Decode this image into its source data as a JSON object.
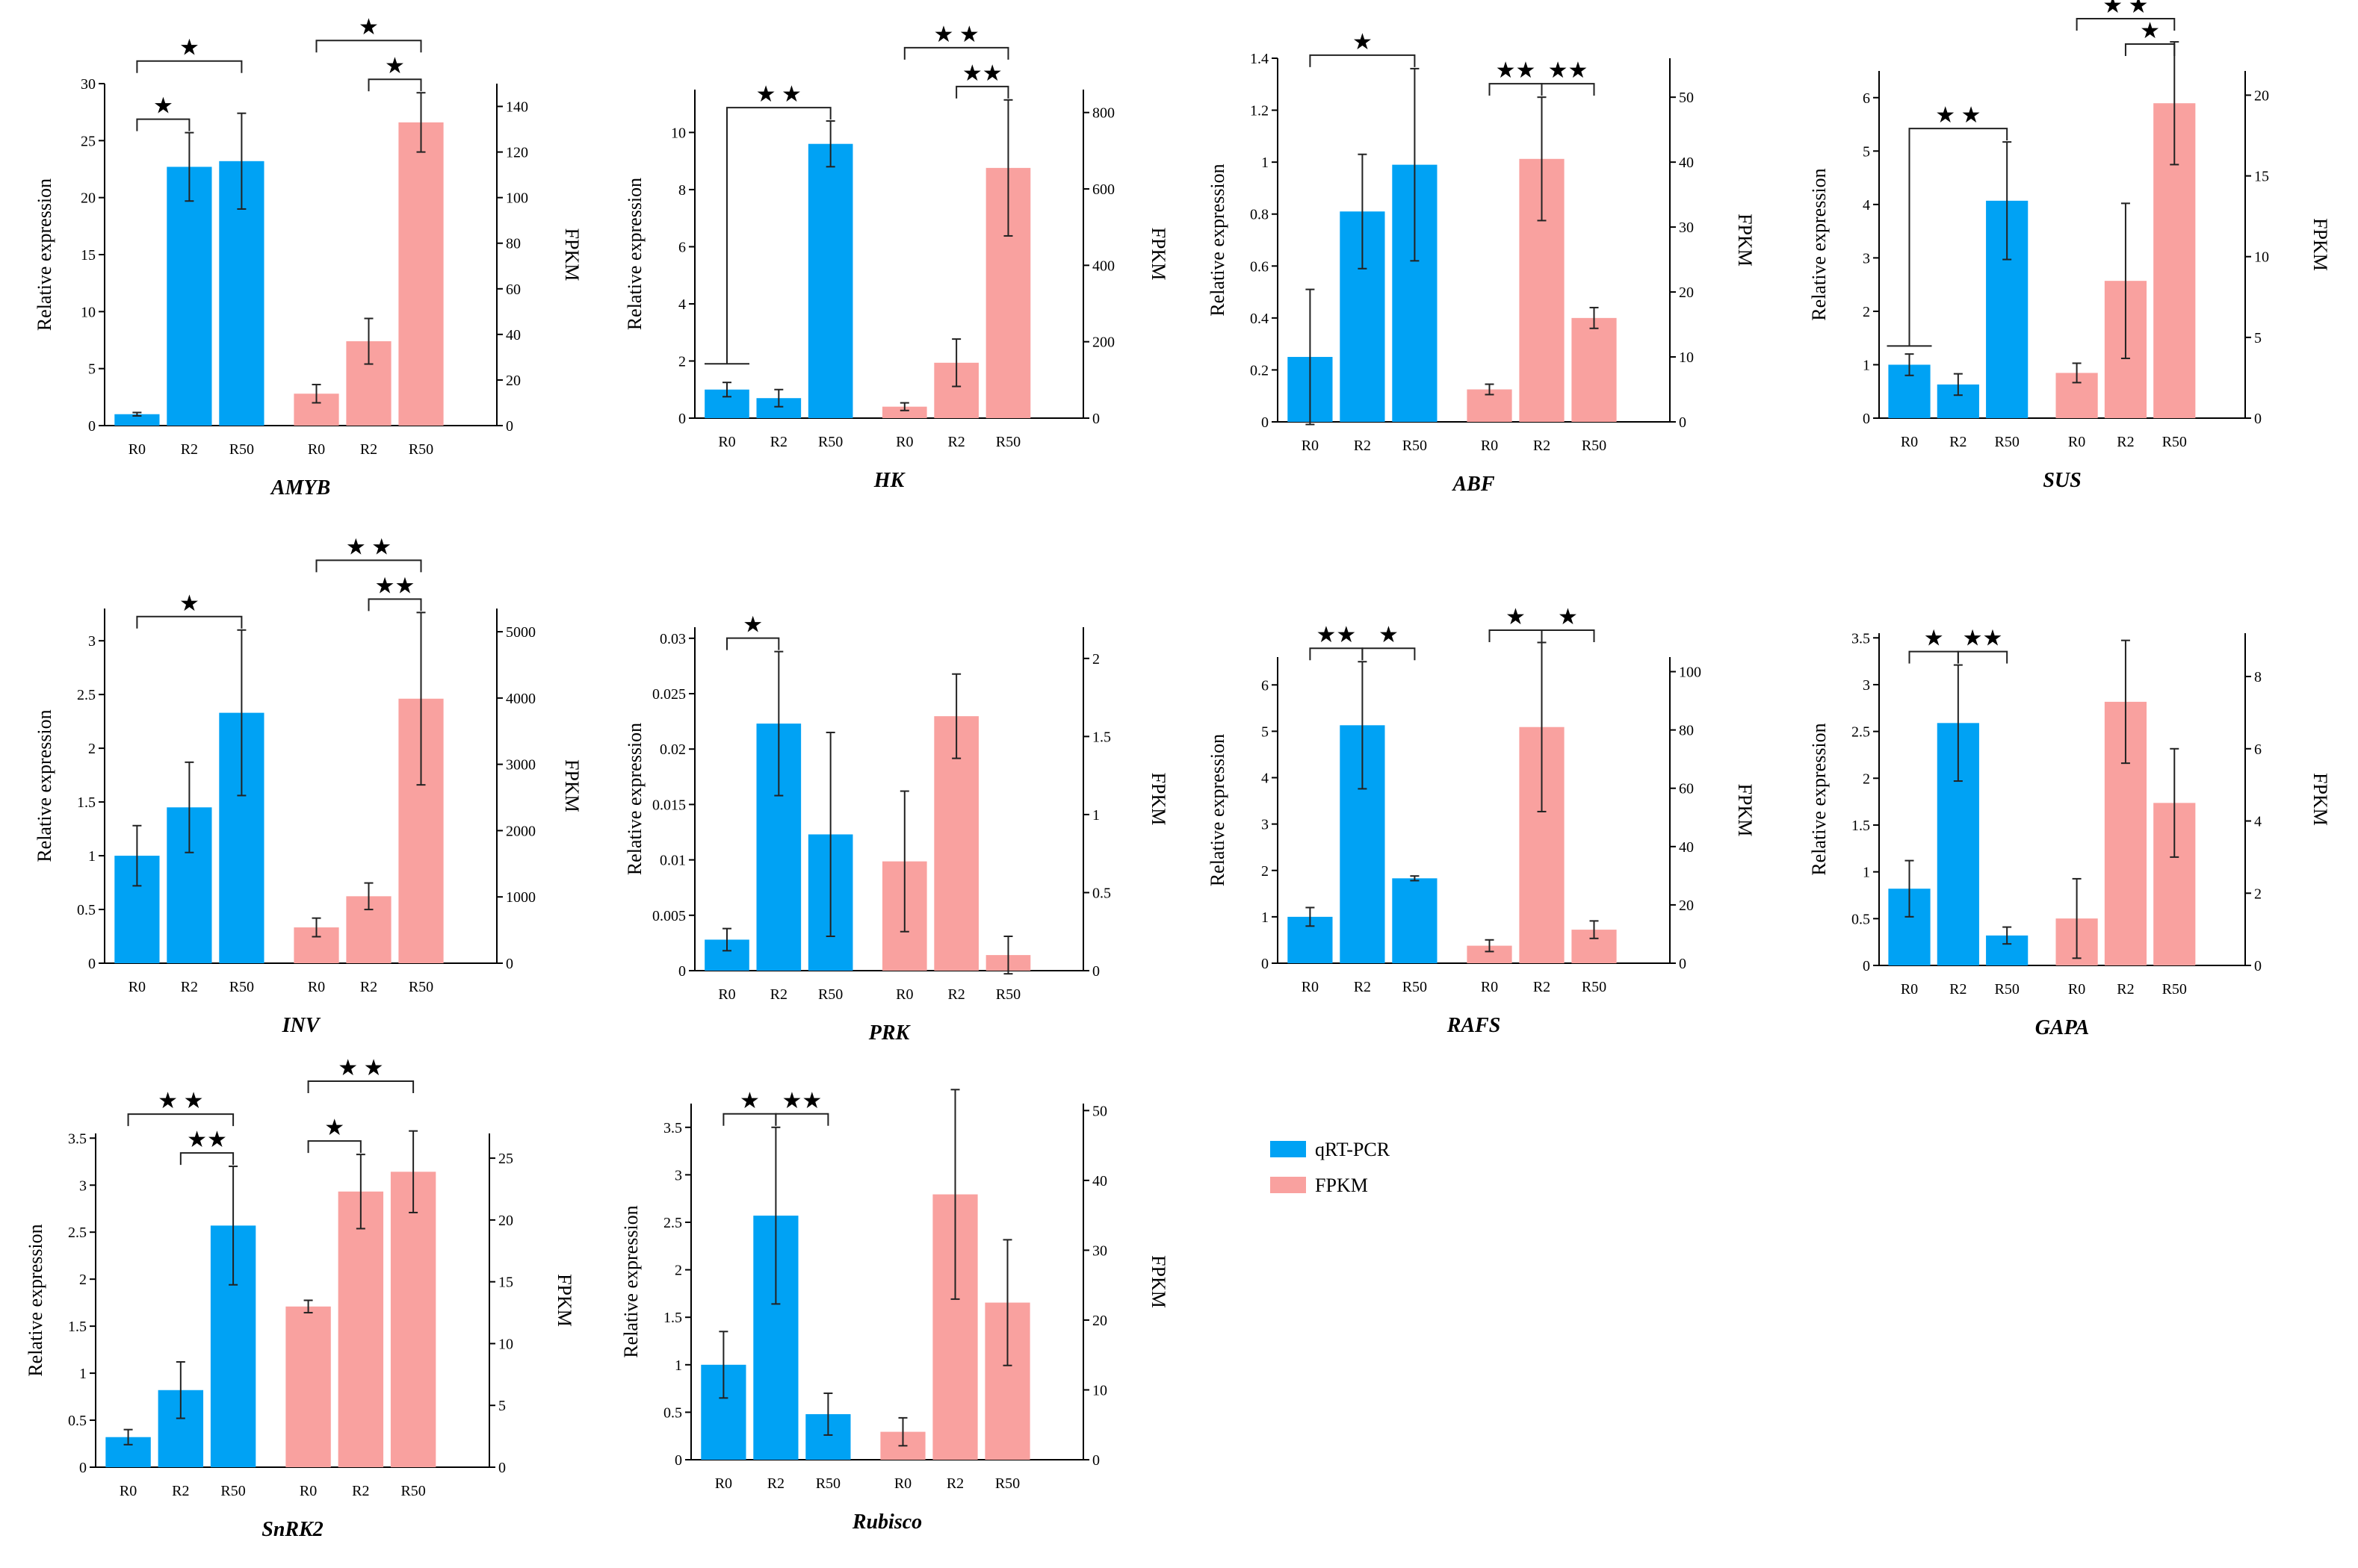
{
  "colors": {
    "qrt": "#00a2f4",
    "fpkm": "#f9a19f",
    "axis": "#000000"
  },
  "legend": {
    "items": [
      {
        "label": "qRT-PCR",
        "color": "#00a2f4"
      },
      {
        "label": "FPKM",
        "color": "#f9a19f"
      }
    ]
  },
  "chart_data": [
    {
      "type": "bar",
      "title": "AMYB",
      "ylabel_left": "Relative expression",
      "ylabel_right": "FPKM",
      "categories": [
        "R0",
        "R2",
        "R50"
      ],
      "ylim_left": [
        0,
        30
      ],
      "yticks_left": [
        "0",
        "5",
        "10",
        "15",
        "20",
        "25",
        "30"
      ],
      "ylim_right": [
        0,
        150
      ],
      "yticks_right": [
        "0",
        "20",
        "40",
        "60",
        "80",
        "100",
        "120",
        "140"
      ],
      "series": [
        {
          "name": "qRT-PCR",
          "values": [
            1.0,
            22.7,
            23.2
          ],
          "errors": [
            0.15,
            3.0,
            4.2
          ]
        },
        {
          "name": "FPKM",
          "values": [
            14,
            37,
            133
          ],
          "errors": [
            4,
            10,
            13
          ]
        }
      ],
      "significance_left": [
        {
          "from": 0,
          "to": 1,
          "stars": "★"
        },
        {
          "from": 0,
          "to": 2,
          "stars": "★"
        }
      ],
      "significance_right": [
        {
          "from": 1,
          "to": 2,
          "stars": "★"
        },
        {
          "from": 0,
          "to": 2,
          "stars": "★"
        }
      ]
    },
    {
      "type": "bar",
      "title": "HK",
      "ylabel_left": "Relative expression",
      "ylabel_right": "FPKM",
      "categories": [
        "R0",
        "R2",
        "R50"
      ],
      "ylim_left": [
        0,
        11.5
      ],
      "yticks_left": [
        "0",
        "2",
        "4",
        "6",
        "8",
        "10"
      ],
      "ylim_right": [
        0,
        860
      ],
      "yticks_right": [
        "0",
        "200",
        "400",
        "600",
        "800"
      ],
      "series": [
        {
          "name": "qRT-PCR",
          "values": [
            1.0,
            0.7,
            9.6
          ],
          "errors": [
            0.25,
            0.3,
            0.8
          ]
        },
        {
          "name": "FPKM",
          "values": [
            30,
            145,
            655
          ],
          "errors": [
            10,
            62,
            178
          ]
        }
      ],
      "significance_left": [
        {
          "from": 0,
          "to": 2,
          "stars": "★ ★",
          "bracket_left_y": 1.9
        }
      ],
      "significance_right": [
        {
          "from": 1,
          "to": 2,
          "stars": "★★"
        },
        {
          "from": 0,
          "to": 2,
          "stars": "★ ★"
        }
      ]
    },
    {
      "type": "bar",
      "title": "ABF",
      "ylabel_left": "Relative expression",
      "ylabel_right": "FPKM",
      "categories": [
        "R0",
        "R2",
        "R50"
      ],
      "ylim_left": [
        0,
        1.4
      ],
      "yticks_left": [
        "0",
        "0.2",
        "0.4",
        "0.6",
        "0.8",
        "1",
        "1.2",
        "1.4"
      ],
      "ylim_right": [
        0,
        56
      ],
      "yticks_right": [
        "0",
        "10",
        "20",
        "30",
        "40",
        "50"
      ],
      "series": [
        {
          "name": "qRT-PCR",
          "values": [
            0.25,
            0.81,
            0.99
          ],
          "errors": [
            0.26,
            0.22,
            0.37
          ]
        },
        {
          "name": "FPKM",
          "values": [
            5,
            40.5,
            16
          ],
          "errors": [
            0.8,
            9.5,
            1.6
          ]
        }
      ],
      "significance_left": [
        {
          "from": 0,
          "to": 2,
          "stars": "★"
        }
      ],
      "significance_right": [
        {
          "from": 0,
          "to": 1,
          "stars": "★★"
        },
        {
          "from": 1,
          "to": 2,
          "stars": "★★"
        }
      ]
    },
    {
      "type": "bar",
      "title": "SUS",
      "ylabel_left": "Relative expression",
      "ylabel_right": "FPKM",
      "categories": [
        "R0",
        "R2",
        "R50"
      ],
      "ylim_left": [
        0,
        6.5
      ],
      "yticks_left": [
        "0",
        "1",
        "2",
        "3",
        "4",
        "5",
        "6"
      ],
      "ylim_right": [
        0,
        21.5
      ],
      "yticks_right": [
        "0",
        "5",
        "10",
        "15",
        "20"
      ],
      "series": [
        {
          "name": "qRT-PCR",
          "values": [
            1.0,
            0.63,
            4.07
          ],
          "errors": [
            0.2,
            0.2,
            1.1
          ]
        },
        {
          "name": "FPKM",
          "values": [
            2.8,
            8.5,
            19.5
          ],
          "errors": [
            0.6,
            4.8,
            3.8
          ]
        }
      ],
      "significance_left": [
        {
          "from": 0,
          "to": 2,
          "stars": "★ ★",
          "bracket_left_y": 1.35
        }
      ],
      "significance_right": [
        {
          "from": 1,
          "to": 2,
          "stars": "★"
        },
        {
          "from": 0,
          "to": 2,
          "stars": "★ ★"
        }
      ]
    },
    {
      "type": "bar",
      "title": "INV",
      "ylabel_left": "Relative expression",
      "ylabel_right": "FPKM",
      "categories": [
        "R0",
        "R2",
        "R50"
      ],
      "ylim_left": [
        0,
        3.3
      ],
      "yticks_left": [
        "0",
        "0.5",
        "1",
        "1.5",
        "2",
        "2.5",
        "3"
      ],
      "ylim_right": [
        0,
        5350
      ],
      "yticks_right": [
        "0",
        "1000",
        "2000",
        "3000",
        "4000",
        "5000"
      ],
      "series": [
        {
          "name": "qRT-PCR",
          "values": [
            1.0,
            1.45,
            2.33
          ],
          "errors": [
            0.28,
            0.42,
            0.77
          ]
        },
        {
          "name": "FPKM",
          "values": [
            540,
            1010,
            3990
          ],
          "errors": [
            140,
            200,
            1300
          ]
        }
      ],
      "significance_left": [
        {
          "from": 0,
          "to": 2,
          "stars": "★"
        }
      ],
      "significance_right": [
        {
          "from": 1,
          "to": 2,
          "stars": "★★"
        },
        {
          "from": 0,
          "to": 2,
          "stars": "★ ★"
        }
      ]
    },
    {
      "type": "bar",
      "title": "PRK",
      "ylabel_left": "Relative expression",
      "ylabel_right": "FPKM",
      "categories": [
        "R0",
        "R2",
        "R50"
      ],
      "ylim_left": [
        0,
        0.031
      ],
      "yticks_left": [
        "0",
        "0.005",
        "0.01",
        "0.015",
        "0.02",
        "0.025",
        "0.03"
      ],
      "ylim_right": [
        0,
        2.2
      ],
      "yticks_right": [
        "0",
        "0.5",
        "1",
        "1.5",
        "2"
      ],
      "series": [
        {
          "name": "qRT-PCR",
          "values": [
            0.0028,
            0.0223,
            0.0123
          ],
          "errors": [
            0.001,
            0.0065,
            0.0092
          ]
        },
        {
          "name": "FPKM",
          "values": [
            0.7,
            1.63,
            0.1
          ],
          "errors": [
            0.45,
            0.27,
            0.12
          ]
        }
      ],
      "significance_left": [
        {
          "from": 0,
          "to": 1,
          "stars": "★"
        }
      ],
      "significance_right": []
    },
    {
      "type": "bar",
      "title": "RAFS",
      "ylabel_left": "Relative expression",
      "ylabel_right": "FPKM",
      "categories": [
        "R0",
        "R2",
        "R50"
      ],
      "ylim_left": [
        0,
        6.6
      ],
      "yticks_left": [
        "0",
        "1",
        "2",
        "3",
        "4",
        "5",
        "6"
      ],
      "ylim_right": [
        0,
        105
      ],
      "yticks_right": [
        "0",
        "20",
        "40",
        "60",
        "80",
        "100"
      ],
      "series": [
        {
          "name": "qRT-PCR",
          "values": [
            1.0,
            5.13,
            1.83
          ],
          "errors": [
            0.2,
            1.37,
            0.05
          ]
        },
        {
          "name": "FPKM",
          "values": [
            6,
            81,
            11.5
          ],
          "errors": [
            2,
            29,
            3
          ]
        }
      ],
      "significance_left": [
        {
          "from": 0,
          "to": 1,
          "stars": "★★"
        },
        {
          "from": 1,
          "to": 2,
          "stars": "★"
        }
      ],
      "significance_right": [
        {
          "from": 0,
          "to": 1,
          "stars": "★"
        },
        {
          "from": 1,
          "to": 2,
          "stars": "★"
        }
      ]
    },
    {
      "type": "bar",
      "title": "GAPA",
      "ylabel_left": "Relative expression",
      "ylabel_right": "FPKM",
      "categories": [
        "R0",
        "R2",
        "R50"
      ],
      "ylim_left": [
        0,
        3.55
      ],
      "yticks_left": [
        "0",
        "0.5",
        "1",
        "1.5",
        "2",
        "2.5",
        "3",
        "3.5"
      ],
      "ylim_right": [
        0,
        9.2
      ],
      "yticks_right": [
        "0",
        "2",
        "4",
        "6",
        "8"
      ],
      "series": [
        {
          "name": "qRT-PCR",
          "values": [
            0.82,
            2.59,
            0.32
          ],
          "errors": [
            0.3,
            0.62,
            0.09
          ]
        },
        {
          "name": "FPKM",
          "values": [
            1.3,
            7.3,
            4.5
          ],
          "errors": [
            1.1,
            1.7,
            1.5
          ]
        }
      ],
      "significance_left": [
        {
          "from": 0,
          "to": 1,
          "stars": "★"
        },
        {
          "from": 1,
          "to": 2,
          "stars": "★★"
        }
      ],
      "significance_right": []
    },
    {
      "type": "bar",
      "title": "SnRK2",
      "ylabel_left": "Relative expression",
      "ylabel_right": "FPKM",
      "categories": [
        "R0",
        "R2",
        "R50"
      ],
      "ylim_left": [
        0,
        3.55
      ],
      "yticks_left": [
        "0",
        "0.5",
        "1",
        "1.5",
        "2",
        "2.5",
        "3",
        "3.5"
      ],
      "ylim_right": [
        0,
        27
      ],
      "yticks_right": [
        "0",
        "5",
        "10",
        "15",
        "20",
        "25"
      ],
      "series": [
        {
          "name": "qRT-PCR",
          "values": [
            0.32,
            0.82,
            2.57
          ],
          "errors": [
            0.08,
            0.3,
            0.63
          ]
        },
        {
          "name": "FPKM",
          "values": [
            13,
            22.3,
            23.9
          ],
          "errors": [
            0.5,
            3,
            3.3
          ]
        }
      ],
      "significance_left": [
        {
          "from": 1,
          "to": 2,
          "stars": "★★"
        },
        {
          "from": 0,
          "to": 2,
          "stars": "★ ★"
        }
      ],
      "significance_right": [
        {
          "from": 0,
          "to": 1,
          "stars": "★"
        },
        {
          "from": 0,
          "to": 2,
          "stars": "★ ★"
        }
      ]
    },
    {
      "type": "bar",
      "title": "Rubisco",
      "ylabel_left": "Relative expression",
      "ylabel_right": "FPKM",
      "categories": [
        "R0",
        "R2",
        "R50"
      ],
      "ylim_left": [
        0,
        3.75
      ],
      "yticks_left": [
        "0",
        "0.5",
        "1",
        "1.5",
        "2",
        "2.5",
        "3",
        "3.5"
      ],
      "ylim_right": [
        0,
        51
      ],
      "yticks_right": [
        "0",
        "10",
        "20",
        "30",
        "40",
        "50"
      ],
      "series": [
        {
          "name": "qRT-PCR",
          "values": [
            1.0,
            2.57,
            0.48
          ],
          "errors": [
            0.35,
            0.93,
            0.22
          ]
        },
        {
          "name": "FPKM",
          "values": [
            4,
            38,
            22.5
          ],
          "errors": [
            2,
            15,
            9
          ]
        }
      ],
      "significance_left": [
        {
          "from": 0,
          "to": 1,
          "stars": "★"
        },
        {
          "from": 1,
          "to": 2,
          "stars": "★★"
        }
      ],
      "significance_right": []
    }
  ]
}
